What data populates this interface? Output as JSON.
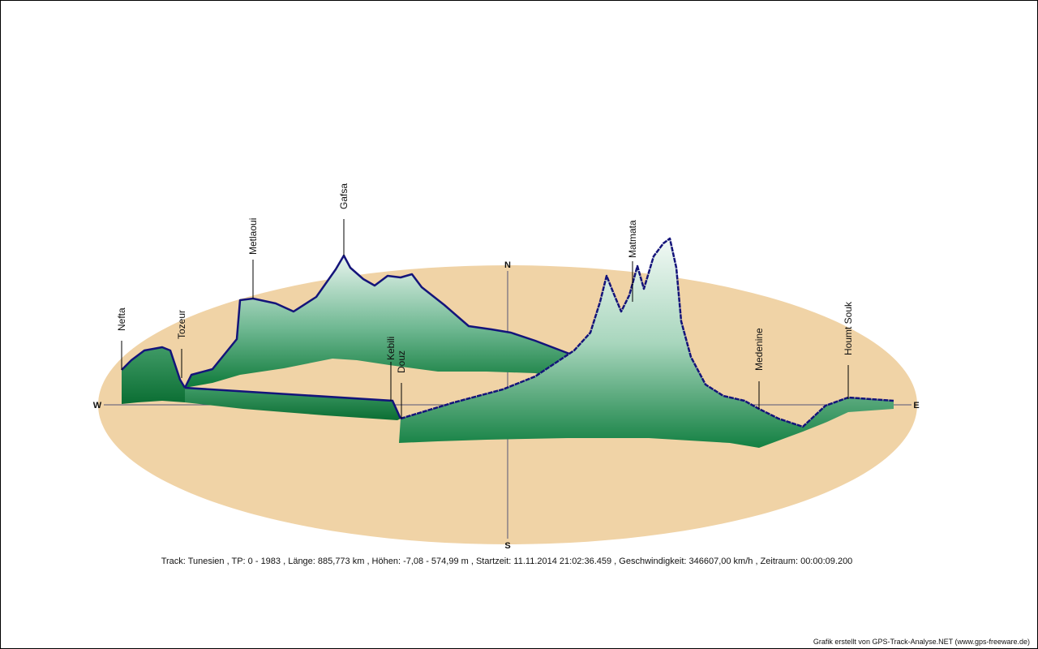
{
  "track_info": "Track: Tunesien  ,  TP: 0 - 1983  ,  Länge: 885,773 km  ,  Höhen: -7,08 - 574,99 m  ,  Startzeit: 11.11.2014 21:02:36.459  ,  Geschwindigkeit: 346607,00 km/h  ,  Zeitraum: 00:00:09.200",
  "credit": "Grafik erstellt von GPS-Track-Analyse.NET (www.gps-freeware.de)",
  "compass": {
    "north": "N",
    "south": "S",
    "west": "W",
    "east": "E"
  },
  "places": [
    {
      "name": "Nefta"
    },
    {
      "name": "Tozeur"
    },
    {
      "name": "Metlaoui"
    },
    {
      "name": "Gafsa"
    },
    {
      "name": "Kebili"
    },
    {
      "name": "Douz"
    },
    {
      "name": "Matmata"
    },
    {
      "name": "Medenine"
    },
    {
      "name": "Houmt Souk"
    }
  ],
  "colors": {
    "ground": "#f0d3a6",
    "track": "#14147a",
    "curtain_dark": "#0e7a3a",
    "curtain_light": "#eef7f2",
    "axis": "#555577"
  }
}
